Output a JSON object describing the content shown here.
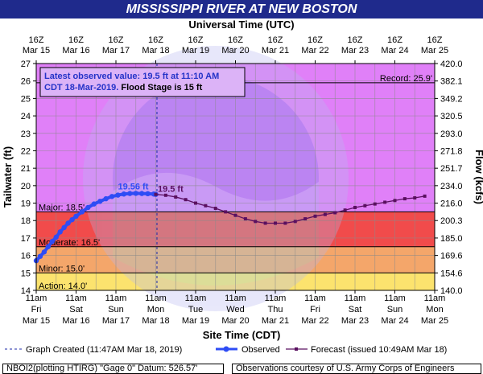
{
  "header": {
    "title": "MISSISSIPPI RIVER AT NEW BOSTON",
    "top_axis_title": "Universal Time (UTC)"
  },
  "notice": {
    "line1": "Latest observed value: 19.5 ft at 11:10 AM",
    "line2_a": "CDT 18-Mar-2019.",
    "line2_b": "Flood Stage is 15 ft"
  },
  "legend": {
    "graph_created": "Graph Created (11:47AM Mar 18, 2019)",
    "observed": "Observed",
    "forecast": "Forecast (issued 10:49AM Mar 18)"
  },
  "footer": {
    "left": "NBOI2(plotting HTIRG) \"Gage 0\" Datum:  526.57'",
    "right": "Observations courtesy of U.S. Army Corps of Engineers"
  },
  "colors": {
    "record_band": "#e080f8",
    "major_band": "#f14b4b",
    "moderate_band": "#f4a66a",
    "minor_band": "#fce36e",
    "action_band": "#fff33b",
    "observed": "#2e4cf5",
    "forecast": "#5a1060",
    "title_bar": "#1f2a8c"
  },
  "chart_data": {
    "type": "line",
    "ylabel": "Tailwater (ft)",
    "y2label": "Flow (kcfs)",
    "xlabel": "Site Time (CDT)",
    "ylim": [
      14,
      27
    ],
    "yticks": [
      14,
      15,
      16,
      17,
      18,
      19,
      20,
      21,
      22,
      23,
      24,
      25,
      26,
      27
    ],
    "y2ticks": [
      "140.0",
      "154.6",
      "169.6",
      "185.0",
      "200.3",
      "216.0",
      "234.0",
      "251.7",
      "271.8",
      "293.0",
      "320.5",
      "349.2",
      "382.1",
      "420.0"
    ],
    "top_ticks": [
      {
        "hour": "16Z",
        "date": "Mar 15"
      },
      {
        "hour": "16Z",
        "date": "Mar 16"
      },
      {
        "hour": "16Z",
        "date": "Mar 17"
      },
      {
        "hour": "16Z",
        "date": "Mar 18"
      },
      {
        "hour": "16Z",
        "date": "Mar 19"
      },
      {
        "hour": "16Z",
        "date": "Mar 20"
      },
      {
        "hour": "16Z",
        "date": "Mar 21"
      },
      {
        "hour": "16Z",
        "date": "Mar 22"
      },
      {
        "hour": "16Z",
        "date": "Mar 23"
      },
      {
        "hour": "16Z",
        "date": "Mar 24"
      },
      {
        "hour": "16Z",
        "date": "Mar 25"
      }
    ],
    "bottom_ticks": [
      {
        "time": "11am",
        "day": "Fri",
        "date": "Mar 15"
      },
      {
        "time": "11am",
        "day": "Sat",
        "date": "Mar 16"
      },
      {
        "time": "11am",
        "day": "Sun",
        "date": "Mar 17"
      },
      {
        "time": "11am",
        "day": "Mon",
        "date": "Mar 18"
      },
      {
        "time": "11am",
        "day": "Tue",
        "date": "Mar 19"
      },
      {
        "time": "11am",
        "day": "Wed",
        "date": "Mar 20"
      },
      {
        "time": "11am",
        "day": "Thu",
        "date": "Mar 21"
      },
      {
        "time": "11am",
        "day": "Fri",
        "date": "Mar 22"
      },
      {
        "time": "11am",
        "day": "Sat",
        "date": "Mar 23"
      },
      {
        "time": "11am",
        "day": "Sun",
        "date": "Mar 24"
      },
      {
        "time": "11am",
        "day": "Mon",
        "date": "Mar 25"
      }
    ],
    "flood_categories": [
      {
        "label": "Record: 25.9'",
        "value": 25.9
      },
      {
        "label": "Major: 18.5'",
        "value": 18.5
      },
      {
        "label": "Moderate: 16.5'",
        "value": 16.5
      },
      {
        "label": "Minor: 15.0'",
        "value": 15.0
      },
      {
        "label": "Action: 14.0'",
        "value": 14.0
      }
    ],
    "graph_created_day": 3.03,
    "peak_label": "19.56 ft",
    "latest_label": "19.5 ft",
    "observed": {
      "name": "Observed",
      "x": [
        0,
        0.1,
        0.2,
        0.3,
        0.4,
        0.5,
        0.6,
        0.7,
        0.8,
        0.9,
        1.0,
        1.15,
        1.3,
        1.45,
        1.6,
        1.75,
        1.9,
        2.05,
        2.2,
        2.35,
        2.5,
        2.65,
        2.8,
        2.95,
        3.0
      ],
      "y": [
        15.7,
        15.95,
        16.2,
        16.5,
        16.8,
        17.05,
        17.35,
        17.6,
        17.85,
        18.05,
        18.25,
        18.5,
        18.75,
        18.95,
        19.1,
        19.25,
        19.38,
        19.46,
        19.52,
        19.55,
        19.56,
        19.55,
        19.54,
        19.52,
        19.5
      ]
    },
    "forecast": {
      "name": "Forecast",
      "x": [
        3.0,
        3.25,
        3.5,
        3.75,
        4.0,
        4.25,
        4.5,
        4.75,
        5.0,
        5.25,
        5.5,
        5.75,
        6.0,
        6.25,
        6.5,
        6.75,
        7.0,
        7.25,
        7.5,
        7.75,
        8.0,
        8.25,
        8.5,
        8.75,
        9.0,
        9.25,
        9.5,
        9.75
      ],
      "y": [
        19.5,
        19.45,
        19.35,
        19.2,
        19.0,
        18.85,
        18.7,
        18.5,
        18.3,
        18.1,
        17.95,
        17.85,
        17.85,
        17.85,
        17.95,
        18.1,
        18.25,
        18.35,
        18.45,
        18.6,
        18.75,
        18.85,
        18.95,
        19.05,
        19.15,
        19.25,
        19.3,
        19.4
      ]
    }
  }
}
